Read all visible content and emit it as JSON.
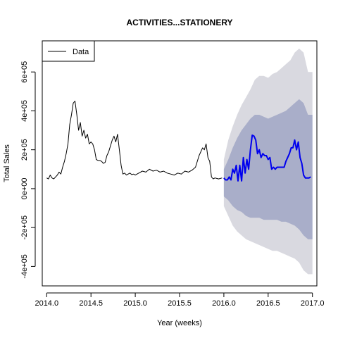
{
  "chart_data": {
    "type": "line",
    "title": "ACTIVITIES...STATIONERY",
    "xlabel": "Year (weeks)",
    "ylabel": "Total Sales",
    "xlim": [
      2013.95,
      2017.05
    ],
    "ylim": [
      -500000,
      760000
    ],
    "x_ticks": [
      2014.0,
      2014.5,
      2015.0,
      2015.5,
      2016.0,
      2016.5,
      2017.0
    ],
    "x_tick_labels": [
      "2014.0",
      "2014.5",
      "2015.0",
      "2015.5",
      "2016.0",
      "2016.5",
      "2017.0"
    ],
    "y_ticks": [
      -400000,
      -200000,
      0,
      200000,
      400000,
      600000
    ],
    "y_tick_labels": [
      "-4e+05",
      "-2e+05",
      "0e+00",
      "2e+05",
      "4e+05",
      "6e+05"
    ],
    "legend": {
      "position": "top-left",
      "entries": [
        "Data"
      ]
    },
    "colors": {
      "data": "#000000",
      "forecast": "#0000ee",
      "band80": "#a9aec9",
      "band95": "#d9d9e0"
    },
    "series": [
      {
        "role": "data",
        "x": [
          2014.0,
          2014.02,
          2014.04,
          2014.06,
          2014.08,
          2014.1,
          2014.12,
          2014.14,
          2014.16,
          2014.18,
          2014.2,
          2014.22,
          2014.24,
          2014.26,
          2014.28,
          2014.3,
          2014.32,
          2014.34,
          2014.36,
          2014.38,
          2014.4,
          2014.42,
          2014.44,
          2014.46,
          2014.48,
          2014.5,
          2014.52,
          2014.54,
          2014.56,
          2014.58,
          2014.6,
          2014.62,
          2014.64,
          2014.66,
          2014.68,
          2014.7,
          2014.72,
          2014.74,
          2014.76,
          2014.78,
          2014.8,
          2014.82,
          2014.84,
          2014.86,
          2014.88,
          2014.9,
          2014.92,
          2014.94,
          2014.96,
          2014.98,
          2015.0,
          2015.04,
          2015.08,
          2015.12,
          2015.16,
          2015.2,
          2015.24,
          2015.28,
          2015.32,
          2015.36,
          2015.4,
          2015.44,
          2015.48,
          2015.52,
          2015.56,
          2015.6,
          2015.64,
          2015.68,
          2015.72,
          2015.74,
          2015.76,
          2015.78,
          2015.8,
          2015.82,
          2015.84,
          2015.86,
          2015.88,
          2015.9,
          2015.94,
          2015.98
        ],
        "y": [
          55000,
          50000,
          70000,
          55000,
          50000,
          60000,
          70000,
          85000,
          75000,
          110000,
          140000,
          180000,
          230000,
          330000,
          380000,
          440000,
          450000,
          380000,
          300000,
          340000,
          270000,
          300000,
          260000,
          280000,
          230000,
          240000,
          230000,
          200000,
          150000,
          145000,
          145000,
          140000,
          130000,
          135000,
          170000,
          190000,
          220000,
          250000,
          270000,
          240000,
          280000,
          200000,
          120000,
          75000,
          80000,
          70000,
          75000,
          80000,
          72000,
          75000,
          70000,
          80000,
          90000,
          85000,
          100000,
          90000,
          95000,
          85000,
          90000,
          80000,
          75000,
          70000,
          80000,
          75000,
          90000,
          85000,
          95000,
          110000,
          170000,
          190000,
          210000,
          200000,
          230000,
          160000,
          140000,
          60000,
          50000,
          55000,
          50000,
          55000
        ]
      },
      {
        "role": "forecast",
        "x": [
          2016.0,
          2016.02,
          2016.04,
          2016.06,
          2016.08,
          2016.1,
          2016.12,
          2016.14,
          2016.16,
          2016.18,
          2016.2,
          2016.22,
          2016.24,
          2016.26,
          2016.28,
          2016.3,
          2016.32,
          2016.34,
          2016.36,
          2016.38,
          2016.4,
          2016.42,
          2016.44,
          2016.46,
          2016.48,
          2016.5,
          2016.52,
          2016.54,
          2016.56,
          2016.58,
          2016.6,
          2016.62,
          2016.64,
          2016.66,
          2016.68,
          2016.7,
          2016.72,
          2016.74,
          2016.76,
          2016.78,
          2016.8,
          2016.82,
          2016.84,
          2016.86,
          2016.88,
          2016.9,
          2016.92,
          2016.94,
          2016.96,
          2016.98
        ],
        "y": [
          55000,
          45000,
          45000,
          60000,
          45000,
          100000,
          80000,
          120000,
          40000,
          120000,
          40000,
          160000,
          80000,
          150000,
          100000,
          200000,
          275000,
          270000,
          250000,
          180000,
          200000,
          160000,
          180000,
          170000,
          170000,
          150000,
          160000,
          100000,
          110000,
          100000,
          110000,
          110000,
          110000,
          110000,
          110000,
          140000,
          160000,
          180000,
          210000,
          210000,
          250000,
          200000,
          240000,
          160000,
          130000,
          70000,
          55000,
          55000,
          55000,
          60000
        ]
      }
    ],
    "interval_80": {
      "x": [
        2016.0,
        2016.05,
        2016.1,
        2016.15,
        2016.2,
        2016.25,
        2016.3,
        2016.35,
        2016.4,
        2016.45,
        2016.5,
        2016.55,
        2016.6,
        2016.65,
        2016.7,
        2016.75,
        2016.8,
        2016.85,
        2016.9,
        2016.95,
        2017.0
      ],
      "lower": [
        -40000,
        -60000,
        -90000,
        -110000,
        -120000,
        -140000,
        -150000,
        -150000,
        -150000,
        -160000,
        -160000,
        -160000,
        -160000,
        -170000,
        -170000,
        -180000,
        -190000,
        -210000,
        -240000,
        -260000,
        -260000
      ],
      "upper": [
        100000,
        150000,
        210000,
        260000,
        300000,
        330000,
        360000,
        380000,
        380000,
        370000,
        360000,
        370000,
        380000,
        390000,
        400000,
        420000,
        440000,
        460000,
        440000,
        380000,
        380000
      ]
    },
    "interval_95": {
      "x": [
        2016.0,
        2016.05,
        2016.1,
        2016.15,
        2016.2,
        2016.25,
        2016.3,
        2016.35,
        2016.4,
        2016.45,
        2016.5,
        2016.55,
        2016.6,
        2016.65,
        2016.7,
        2016.75,
        2016.8,
        2016.85,
        2016.9,
        2016.95,
        2017.0
      ],
      "lower": [
        -90000,
        -140000,
        -190000,
        -220000,
        -240000,
        -260000,
        -270000,
        -280000,
        -290000,
        -300000,
        -310000,
        -320000,
        -320000,
        -330000,
        -340000,
        -350000,
        -360000,
        -380000,
        -420000,
        -440000,
        -440000
      ],
      "upper": [
        150000,
        250000,
        320000,
        380000,
        430000,
        470000,
        510000,
        560000,
        580000,
        580000,
        570000,
        590000,
        600000,
        620000,
        640000,
        660000,
        700000,
        720000,
        700000,
        600000,
        600000
      ]
    }
  }
}
